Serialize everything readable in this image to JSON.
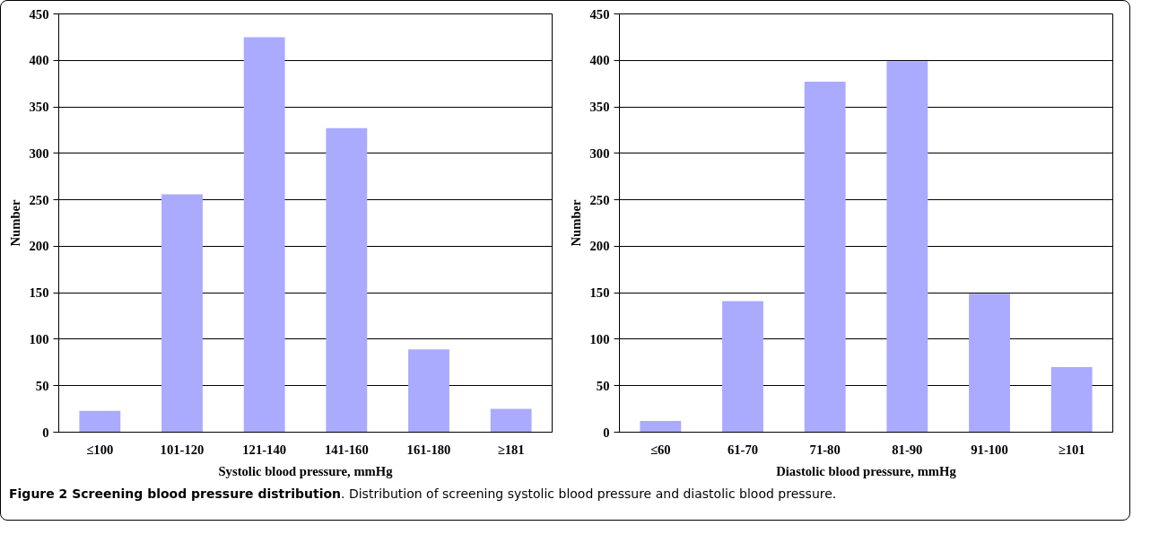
{
  "chart_data": [
    {
      "type": "bar",
      "categories": [
        "≤100",
        "101-120",
        "121-140",
        "141-160",
        "161-180",
        "≥181"
      ],
      "values": [
        23,
        256,
        425,
        327,
        89,
        25
      ],
      "color": "#aaaaff",
      "xlabel": "Systolic blood pressure, mmHg",
      "ylabel": "Number",
      "ylim": [
        0,
        450
      ],
      "yticks": [
        0,
        50,
        100,
        150,
        200,
        250,
        300,
        350,
        400,
        450
      ],
      "grid": "y",
      "annotations": [
        "Figure 2 Screening blood pressure distribution",
        ". Distribution of screening systolic blood pressure and diastolic blood pressure."
      ]
    },
    {
      "type": "bar",
      "categories": [
        "≤60",
        "61-70",
        "71-80",
        "81-90",
        "91-100",
        "≥101"
      ],
      "values": [
        12,
        141,
        377,
        399,
        149,
        70
      ],
      "color": "#aaaaff",
      "xlabel": "Diastolic blood pressure, mmHg",
      "ylabel": "Number",
      "ylim": [
        0,
        450
      ],
      "yticks": [
        0,
        50,
        100,
        150,
        200,
        250,
        300,
        350,
        400,
        450
      ],
      "grid": "y"
    }
  ]
}
